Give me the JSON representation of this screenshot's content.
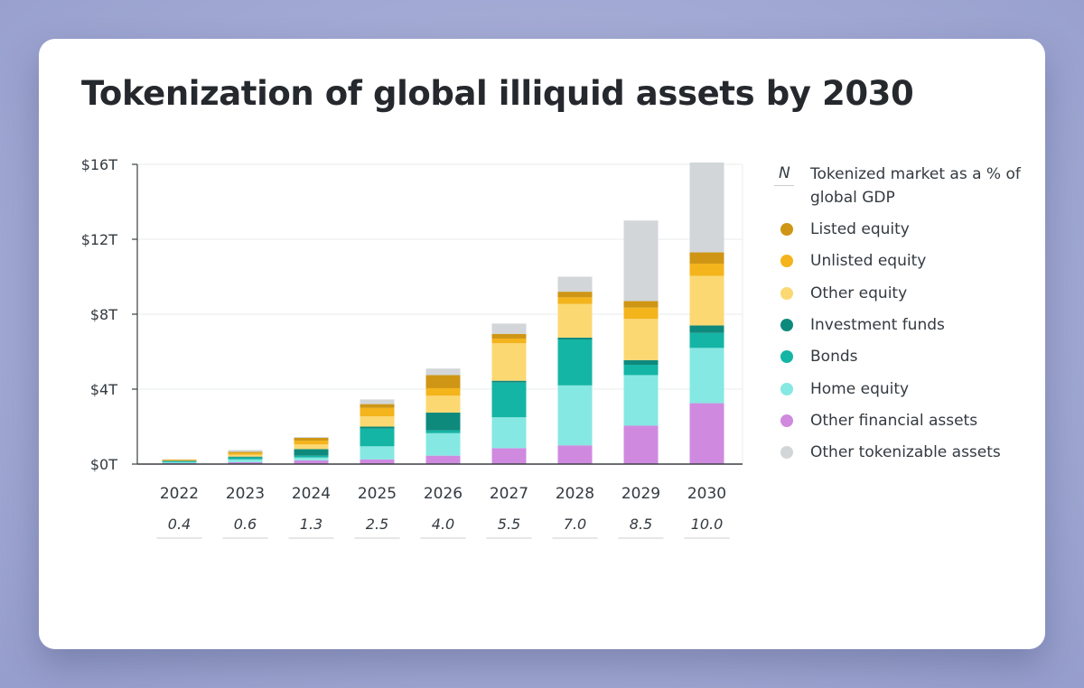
{
  "title": "Tokenization of global illiquid assets by 2030",
  "colors": {
    "page_bg": "#a3aad4",
    "card_bg": "#ffffff",
    "title": "#25292e",
    "text": "#333a40"
  },
  "legend": {
    "n_symbol": "N",
    "n_label": "Tokenized market as a % of global GDP"
  },
  "chart_data": {
    "type": "bar",
    "stacked": true,
    "title": "Tokenization of global illiquid assets by 2030",
    "categories": [
      "2022",
      "2023",
      "2024",
      "2025",
      "2026",
      "2027",
      "2028",
      "2029",
      "2030"
    ],
    "annotations": {
      "name": "Tokenized market as a % of global GDP",
      "values": [
        "0.4",
        "0.6",
        "1.3",
        "2.5",
        "4.0",
        "5.5",
        "7.0",
        "8.5",
        "10.0"
      ]
    },
    "ylim": [
      0,
      16
    ],
    "yticks": [
      0,
      4,
      8,
      12,
      16
    ],
    "ytick_labels": [
      "$0T",
      "$4T",
      "$8T",
      "$12T",
      "$16T"
    ],
    "xlabel": "",
    "ylabel": "",
    "legend_position": "right",
    "series": [
      {
        "name": "Other financial assets",
        "color": "#cf8ae0",
        "values": [
          0.05,
          0.1,
          0.2,
          0.25,
          0.45,
          0.85,
          1.0,
          2.05,
          3.25
        ]
      },
      {
        "name": "Home equity",
        "color": "#86e8e2",
        "values": [
          0.05,
          0.15,
          0.15,
          0.7,
          1.2,
          1.65,
          3.2,
          2.7,
          2.95
        ]
      },
      {
        "name": "Bonds",
        "color": "#14b5a5",
        "values": [
          0.05,
          0.1,
          0.1,
          0.95,
          0.15,
          1.85,
          2.45,
          0.55,
          0.8
        ]
      },
      {
        "name": "Investment funds",
        "color": "#0e8a7d",
        "values": [
          0.03,
          0.05,
          0.35,
          0.1,
          0.95,
          0.1,
          0.1,
          0.25,
          0.4
        ]
      },
      {
        "name": "Other equity",
        "color": "#fcd872",
        "values": [
          0.02,
          0.1,
          0.25,
          0.55,
          0.9,
          2.0,
          1.8,
          2.2,
          2.65
        ]
      },
      {
        "name": "Unlisted equity",
        "color": "#f4b41c",
        "values": [
          0.02,
          0.1,
          0.2,
          0.45,
          0.4,
          0.25,
          0.35,
          0.6,
          0.65
        ]
      },
      {
        "name": "Listed equity",
        "color": "#ce9614",
        "values": [
          0.02,
          0.05,
          0.15,
          0.2,
          0.7,
          0.25,
          0.3,
          0.35,
          0.6
        ]
      },
      {
        "name": "Other tokenizable assets",
        "color": "#d2d6d9",
        "values": [
          0.0,
          0.1,
          0.05,
          0.25,
          0.35,
          0.55,
          0.8,
          4.3,
          4.8
        ]
      }
    ]
  }
}
